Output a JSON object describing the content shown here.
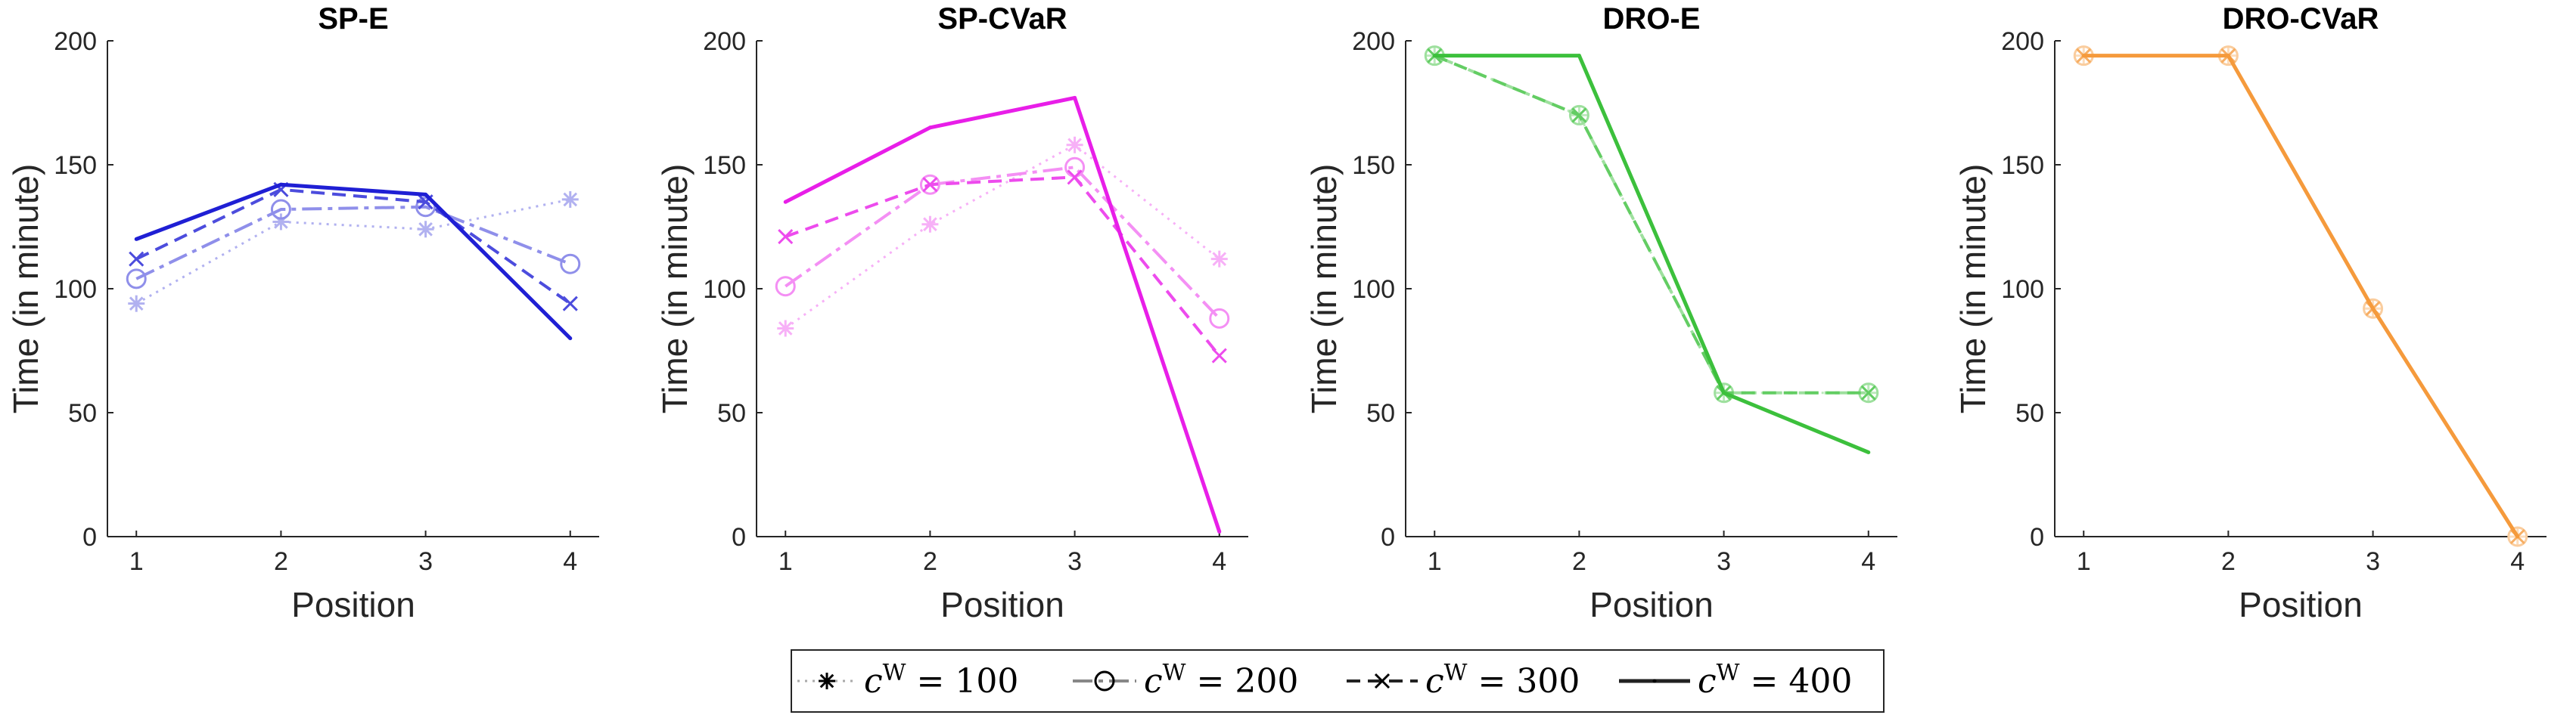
{
  "chart_data": [
    {
      "type": "line",
      "title": "SP-E",
      "xlabel": "Position",
      "ylabel": "Time (in minute)",
      "x": [
        1,
        2,
        3,
        4
      ],
      "xlim": [
        0.8,
        4.2
      ],
      "ylim": [
        0,
        200
      ],
      "xticks": [
        "1",
        "2",
        "3",
        "4"
      ],
      "yticks": [
        "0",
        "50",
        "100",
        "150",
        "200"
      ],
      "color": "#1f1fd4",
      "series": [
        {
          "name": "c^W = 100",
          "values": [
            94,
            127,
            124,
            136
          ]
        },
        {
          "name": "c^W = 200",
          "values": [
            104,
            132,
            133,
            110
          ]
        },
        {
          "name": "c^W = 300",
          "values": [
            112,
            140,
            135,
            94
          ]
        },
        {
          "name": "c^W = 400",
          "values": [
            120,
            142,
            138,
            80
          ]
        }
      ]
    },
    {
      "type": "line",
      "title": "SP-CVaR",
      "xlabel": "Position",
      "ylabel": "Time (in minute)",
      "x": [
        1,
        2,
        3,
        4
      ],
      "xlim": [
        0.8,
        4.2
      ],
      "ylim": [
        0,
        200
      ],
      "xticks": [
        "1",
        "2",
        "3",
        "4"
      ],
      "yticks": [
        "0",
        "50",
        "100",
        "150",
        "200"
      ],
      "color": "#e81ee8",
      "series": [
        {
          "name": "c^W = 100",
          "values": [
            84,
            126,
            158,
            112
          ]
        },
        {
          "name": "c^W = 200",
          "values": [
            101,
            142,
            149,
            88
          ]
        },
        {
          "name": "c^W = 300",
          "values": [
            121,
            142,
            145,
            73
          ]
        },
        {
          "name": "c^W = 400",
          "values": [
            135,
            165,
            177,
            2
          ]
        }
      ]
    },
    {
      "type": "line",
      "title": "DRO-E",
      "xlabel": "Position",
      "ylabel": "Time (in minute)",
      "x": [
        1,
        2,
        3,
        4
      ],
      "xlim": [
        0.8,
        4.2
      ],
      "ylim": [
        0,
        200
      ],
      "xticks": [
        "1",
        "2",
        "3",
        "4"
      ],
      "yticks": [
        "0",
        "50",
        "100",
        "150",
        "200"
      ],
      "color": "#3cc03c",
      "series": [
        {
          "name": "c^W = 100",
          "values": [
            194,
            170,
            58,
            58
          ]
        },
        {
          "name": "c^W = 200",
          "values": [
            194,
            170,
            58,
            58
          ]
        },
        {
          "name": "c^W = 300",
          "values": [
            194,
            170,
            58,
            58
          ]
        },
        {
          "name": "c^W = 400",
          "values": [
            194,
            194,
            58,
            34
          ]
        }
      ]
    },
    {
      "type": "line",
      "title": "DRO-CVaR",
      "xlabel": "Position",
      "ylabel": "Time (in minute)",
      "x": [
        1,
        2,
        3,
        4
      ],
      "xlim": [
        0.8,
        4.2
      ],
      "ylim": [
        0,
        200
      ],
      "xticks": [
        "1",
        "2",
        "3",
        "4"
      ],
      "yticks": [
        "0",
        "50",
        "100",
        "150",
        "200"
      ],
      "color": "#f59a3c",
      "series": [
        {
          "name": "c^W = 100",
          "values": [
            194,
            194,
            92,
            0
          ]
        },
        {
          "name": "c^W = 200",
          "values": [
            194,
            194,
            92,
            0
          ]
        },
        {
          "name": "c^W = 300",
          "values": [
            194,
            194,
            92,
            0
          ]
        },
        {
          "name": "c^W = 400",
          "values": [
            194,
            194,
            92,
            0
          ]
        }
      ]
    }
  ],
  "legend": {
    "position": "bottom-center",
    "entries": [
      {
        "var": "c",
        "sup": "W",
        "text": " = 100"
      },
      {
        "var": "c",
        "sup": "W",
        "text": " = 200"
      },
      {
        "var": "c",
        "sup": "W",
        "text": " = 300"
      },
      {
        "var": "c",
        "sup": "W",
        "text": " = 400"
      }
    ]
  }
}
